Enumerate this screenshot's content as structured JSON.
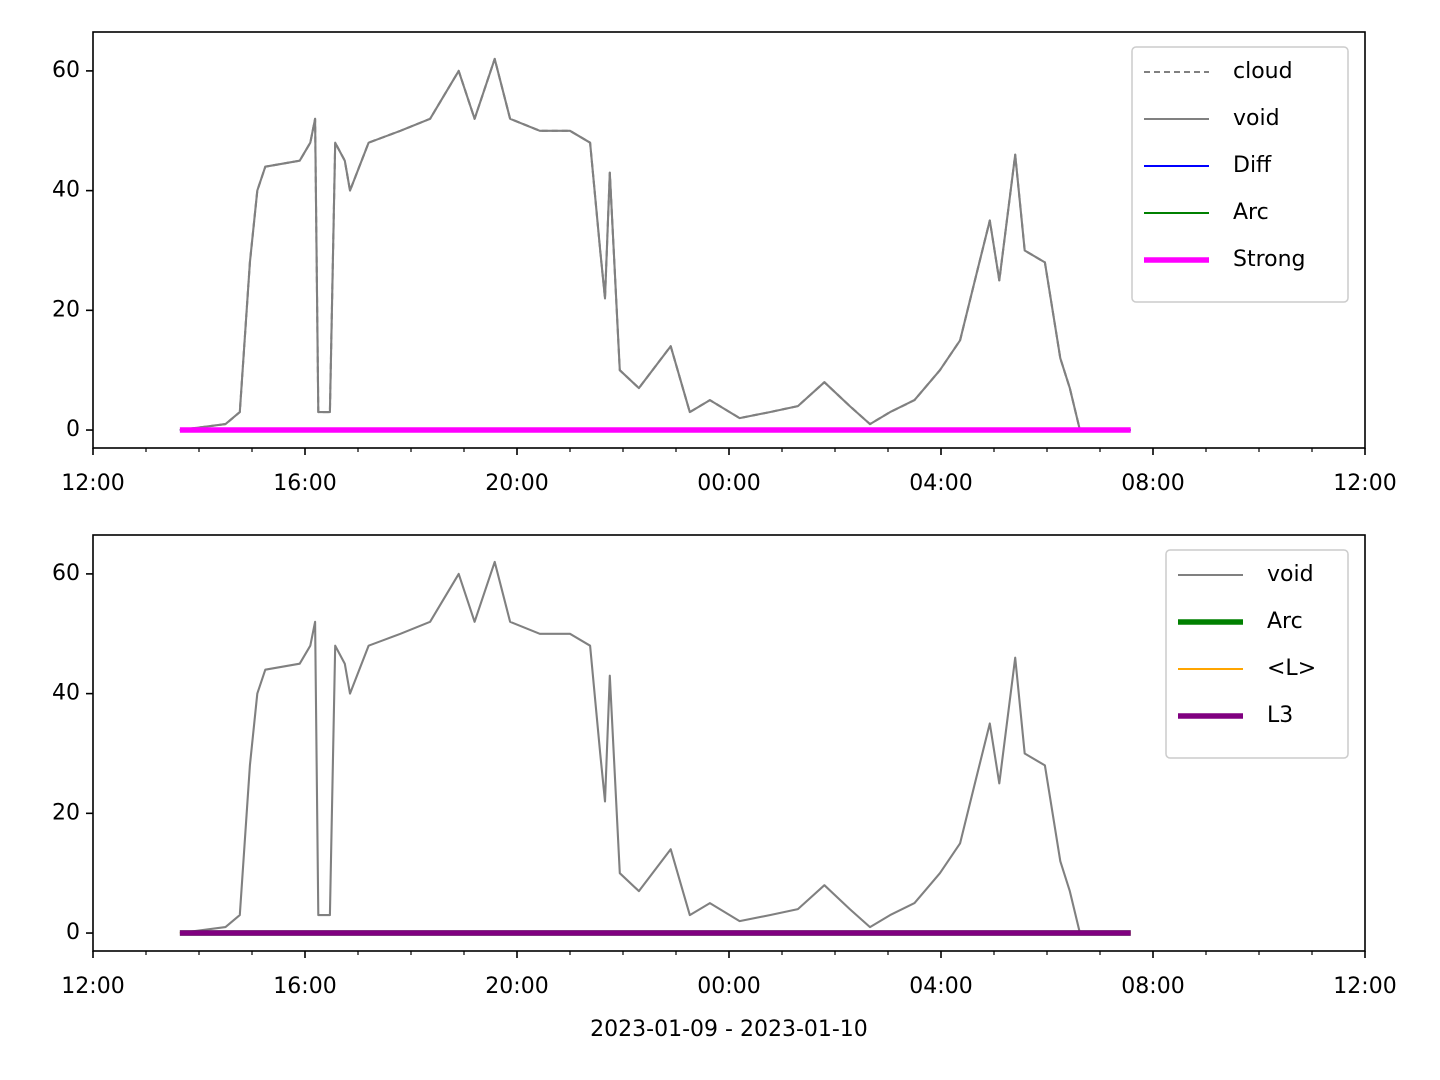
{
  "chart_data": [
    {
      "type": "line",
      "xlim": [
        0,
        24
      ],
      "ylim": [
        -3,
        66.5
      ],
      "xticks": [
        {
          "value": 0,
          "label": "12:00"
        },
        {
          "value": 4,
          "label": "16:00"
        },
        {
          "value": 8,
          "label": "20:00"
        },
        {
          "value": 12,
          "label": "00:00"
        },
        {
          "value": 16,
          "label": "04:00"
        },
        {
          "value": 20,
          "label": "08:00"
        },
        {
          "value": 24,
          "label": "12:00"
        }
      ],
      "xminorticks": [
        1,
        2,
        3,
        5,
        6,
        7,
        9,
        10,
        11,
        13,
        14,
        15,
        17,
        18,
        19,
        21,
        22,
        23
      ],
      "yticks": [
        0,
        20,
        40,
        60
      ],
      "legend": "upper right",
      "series": [
        {
          "name": "cloud",
          "color": "#808080",
          "linewidth": 1.5,
          "linestyle": "dashed",
          "x": [
            1.64,
            2.5,
            2.77,
            2.96,
            3.1,
            3.25,
            3.9,
            4.1,
            4.19,
            4.25,
            4.47,
            4.57,
            4.75,
            4.85,
            5.2,
            5.8,
            6.36,
            6.9,
            7.2,
            7.58,
            7.87,
            8.43,
            9.0,
            9.38,
            9.57,
            9.66,
            9.75,
            9.94,
            10.3,
            10.9,
            11.26,
            11.64,
            12.2,
            12.77,
            13.3,
            13.8,
            14.28,
            14.66,
            15.04,
            15.5,
            15.98,
            16.36,
            16.64,
            16.92,
            17.1,
            17.4,
            17.58,
            17.96,
            18.25,
            18.43,
            18.62
          ],
          "values": [
            0,
            1,
            3,
            28,
            40,
            44,
            45,
            48,
            52,
            3,
            3,
            48,
            45,
            40,
            48,
            50,
            52,
            60,
            52,
            62,
            52,
            50,
            50,
            48,
            30,
            22,
            43,
            10,
            7,
            14,
            3,
            5,
            2,
            3,
            4,
            8,
            4,
            1,
            3,
            5,
            10,
            15,
            25,
            35,
            25,
            46,
            30,
            28,
            12,
            7,
            0
          ]
        },
        {
          "name": "void",
          "color": "#808080",
          "linewidth": 1.5,
          "linestyle": "solid",
          "x": [
            1.64,
            2.5,
            2.77,
            2.96,
            3.1,
            3.25,
            3.9,
            4.1,
            4.19,
            4.25,
            4.47,
            4.57,
            4.75,
            4.85,
            5.2,
            5.8,
            6.36,
            6.9,
            7.2,
            7.58,
            7.87,
            8.43,
            9.0,
            9.38,
            9.57,
            9.66,
            9.75,
            9.94,
            10.3,
            10.9,
            11.26,
            11.64,
            12.2,
            12.77,
            13.3,
            13.8,
            14.28,
            14.66,
            15.04,
            15.5,
            15.98,
            16.36,
            16.64,
            16.92,
            17.1,
            17.4,
            17.58,
            17.96,
            18.25,
            18.43,
            18.62
          ],
          "values": [
            0,
            1,
            3,
            28,
            40,
            44,
            45,
            48,
            52,
            3,
            3,
            48,
            45,
            40,
            48,
            50,
            52,
            60,
            52,
            62,
            52,
            50,
            50,
            48,
            30,
            22,
            43,
            10,
            7,
            14,
            3,
            5,
            2,
            3,
            4,
            8,
            4,
            1,
            3,
            5,
            10,
            15,
            25,
            35,
            25,
            46,
            30,
            28,
            12,
            7,
            0
          ]
        },
        {
          "name": "Diff",
          "color": "#0000ff",
          "linewidth": 1.5,
          "linestyle": "solid",
          "x": [
            1.64,
            19.58
          ],
          "values": [
            0,
            0
          ]
        },
        {
          "name": "Arc",
          "color": "#008000",
          "linewidth": 1.5,
          "linestyle": "solid",
          "x": [
            1.64,
            19.58
          ],
          "values": [
            0,
            0
          ]
        },
        {
          "name": "Strong",
          "color": "#ff00ff",
          "linewidth": 4,
          "linestyle": "solid",
          "x": [
            1.64,
            19.58
          ],
          "values": [
            0,
            0
          ]
        }
      ]
    },
    {
      "type": "line",
      "xlim": [
        0,
        24
      ],
      "ylim": [
        -3,
        66.5
      ],
      "xticks": [
        {
          "value": 0,
          "label": "12:00"
        },
        {
          "value": 4,
          "label": "16:00"
        },
        {
          "value": 8,
          "label": "20:00"
        },
        {
          "value": 12,
          "label": "00:00"
        },
        {
          "value": 16,
          "label": "04:00"
        },
        {
          "value": 20,
          "label": "08:00"
        },
        {
          "value": 24,
          "label": "12:00"
        }
      ],
      "xminorticks": [
        1,
        2,
        3,
        5,
        6,
        7,
        9,
        10,
        11,
        13,
        14,
        15,
        17,
        18,
        19,
        21,
        22,
        23
      ],
      "yticks": [
        0,
        20,
        40,
        60
      ],
      "xlabel": "2023-01-09 - 2023-01-10",
      "legend": "upper right",
      "series": [
        {
          "name": "void",
          "color": "#808080",
          "linewidth": 1.5,
          "linestyle": "solid",
          "x": [
            1.64,
            2.5,
            2.77,
            2.96,
            3.1,
            3.25,
            3.9,
            4.1,
            4.19,
            4.25,
            4.47,
            4.57,
            4.75,
            4.85,
            5.2,
            5.8,
            6.36,
            6.9,
            7.2,
            7.58,
            7.87,
            8.43,
            9.0,
            9.38,
            9.57,
            9.66,
            9.75,
            9.94,
            10.3,
            10.9,
            11.26,
            11.64,
            12.2,
            12.77,
            13.3,
            13.8,
            14.28,
            14.66,
            15.04,
            15.5,
            15.98,
            16.36,
            16.64,
            16.92,
            17.1,
            17.4,
            17.58,
            17.96,
            18.25,
            18.43,
            18.62
          ],
          "values": [
            0,
            1,
            3,
            28,
            40,
            44,
            45,
            48,
            52,
            3,
            3,
            48,
            45,
            40,
            48,
            50,
            52,
            60,
            52,
            62,
            52,
            50,
            50,
            48,
            30,
            22,
            43,
            10,
            7,
            14,
            3,
            5,
            2,
            3,
            4,
            8,
            4,
            1,
            3,
            5,
            10,
            15,
            25,
            35,
            25,
            46,
            30,
            28,
            12,
            7,
            0
          ]
        },
        {
          "name": "Arc",
          "color": "#008000",
          "linewidth": 4,
          "linestyle": "solid",
          "x": [
            1.64,
            19.58
          ],
          "values": [
            0,
            0
          ]
        },
        {
          "name": "<L>",
          "color": "#ffa500",
          "linewidth": 1.5,
          "linestyle": "solid",
          "x": [
            1.64,
            19.58
          ],
          "values": [
            0,
            0
          ]
        },
        {
          "name": "L3",
          "color": "#800080",
          "linewidth": 4,
          "linestyle": "solid",
          "x": [
            1.64,
            19.58
          ],
          "values": [
            0,
            0
          ]
        }
      ]
    }
  ]
}
